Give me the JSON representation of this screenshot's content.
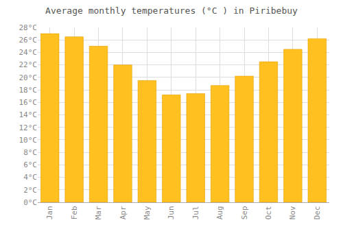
{
  "chart_data": {
    "type": "bar",
    "title": "Average monthly temperatures (°C ) in Piribebuy",
    "categories": [
      "Jan",
      "Feb",
      "Mar",
      "Apr",
      "May",
      "Jun",
      "Jul",
      "Aug",
      "Sep",
      "Oct",
      "Nov",
      "Dec"
    ],
    "values": [
      27.0,
      26.5,
      25.0,
      22.0,
      19.5,
      17.2,
      17.4,
      18.7,
      20.2,
      22.5,
      24.5,
      26.2
    ],
    "color": "#FFC020",
    "ylim": [
      0,
      28
    ],
    "yticks": [
      {
        "value": 0,
        "label": "0°C"
      },
      {
        "value": 2,
        "label": "2°C"
      },
      {
        "value": 4,
        "label": "4°C"
      },
      {
        "value": 6,
        "label": "6°C"
      },
      {
        "value": 8,
        "label": "8°C"
      },
      {
        "value": 10,
        "label": "10°C"
      },
      {
        "value": 12,
        "label": "12°C"
      },
      {
        "value": 14,
        "label": "14°C"
      },
      {
        "value": 16,
        "label": "16°C"
      },
      {
        "value": 18,
        "label": "18°C"
      },
      {
        "value": 20,
        "label": "20°C"
      },
      {
        "value": 22,
        "label": "22°C"
      },
      {
        "value": 24,
        "label": "24°C"
      },
      {
        "value": 26,
        "label": "26°C"
      },
      {
        "value": 28,
        "label": "28°C"
      }
    ],
    "grid": true
  }
}
